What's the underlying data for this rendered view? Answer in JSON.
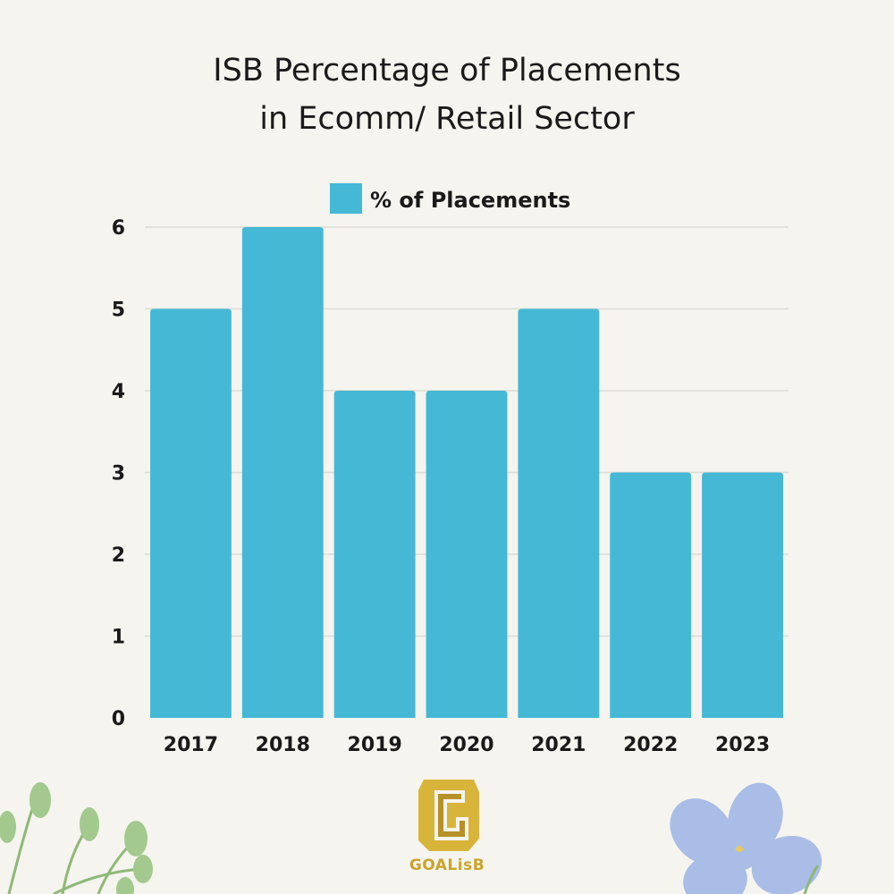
{
  "chart_data": {
    "type": "bar",
    "title_lines": [
      "ISB Percentage of Placements",
      "in Ecomm/ Retail Sector"
    ],
    "categories": [
      "2017",
      "2018",
      "2019",
      "2020",
      "2021",
      "2022",
      "2023"
    ],
    "series": [
      {
        "name": "% of Placements",
        "values": [
          5,
          6,
          4,
          4,
          5,
          3,
          3
        ],
        "color": "#45b8d6"
      }
    ],
    "yticks": [
      "0",
      "1",
      "2",
      "3",
      "4",
      "5",
      "6"
    ],
    "ylim": [
      0,
      6
    ],
    "grid": true,
    "legend_position": "top-center"
  },
  "branding": {
    "logo_text": "GOALisB",
    "logo_color": "#c9a42c"
  },
  "decorations": {
    "left": "leafy-sprig-icon",
    "right": "blue-flower-icon",
    "leaf_color": "#a3c98e",
    "flower_color": "#a9bde6"
  }
}
